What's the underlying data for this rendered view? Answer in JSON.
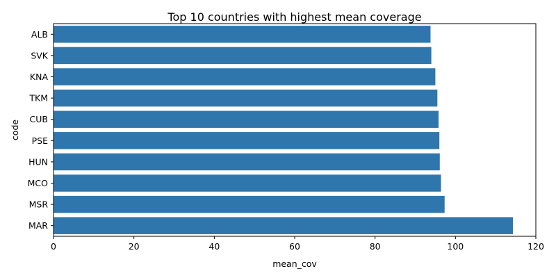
{
  "chart_data": {
    "type": "bar",
    "orientation": "horizontal",
    "title": "Top 10 countries with highest mean coverage",
    "xlabel": "mean_cov",
    "ylabel": "code",
    "xlim": [
      0,
      120
    ],
    "xticks": [
      0,
      20,
      40,
      60,
      80,
      100,
      120
    ],
    "grid": false,
    "bar_color": "#2f76ac",
    "categories": [
      "ALB",
      "SVK",
      "KNA",
      "TKM",
      "CUB",
      "PSE",
      "HUN",
      "MCO",
      "MSR",
      "MAR"
    ],
    "values": [
      93.8,
      94.0,
      95.0,
      95.5,
      95.8,
      96.0,
      96.1,
      96.4,
      97.3,
      114.3
    ]
  }
}
